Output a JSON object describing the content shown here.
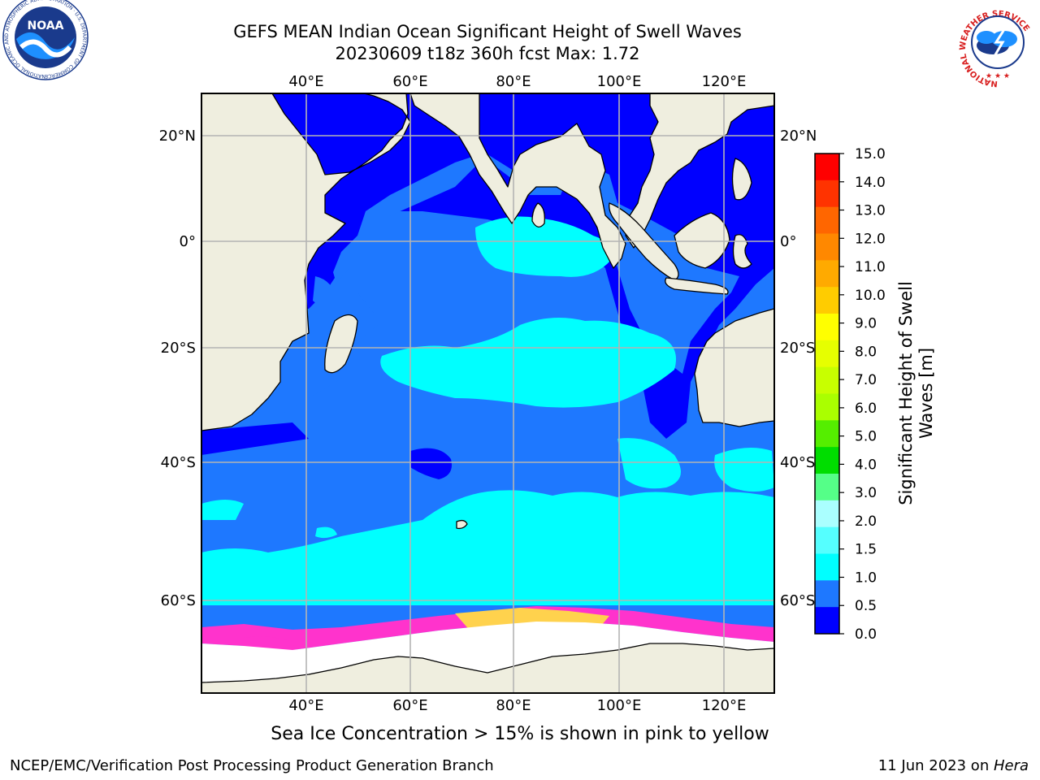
{
  "title": {
    "line1": "GEFS MEAN Indian Ocean Significant Height of Swell Waves",
    "line2": "20230609 t18z 360h fcst   Max: 1.72"
  },
  "map": {
    "lon_labels": [
      "40°E",
      "60°E",
      "80°E",
      "100°E",
      "120°E"
    ],
    "lat_labels": [
      "20°N",
      "0°",
      "20°S",
      "40°S",
      "60°S"
    ],
    "colors": {
      "land": "#efeedf",
      "ice": "#ffffff",
      "ocean_low": "#0000ff",
      "ocean_mid": "#1e78ff",
      "ocean_high": "#00ffff",
      "ice_edge_pink": "#ff33cc",
      "ice_edge_yellow": "#ffd24d",
      "grid": "#b4b4b4"
    }
  },
  "colorbar": {
    "label_line1": "Significant Height of Swell",
    "label_line2": "Waves [m]",
    "ticks": [
      "15.0",
      "14.0",
      "13.0",
      "12.0",
      "11.0",
      "10.0",
      "9.0",
      "8.0",
      "7.0",
      "6.0",
      "5.0",
      "4.0",
      "3.0",
      "2.0",
      "1.5",
      "1.0",
      "0.5",
      "0.0"
    ],
    "colors_top_to_bottom": [
      "#ff0000",
      "#ff3300",
      "#ff6600",
      "#ff8800",
      "#ffaa00",
      "#ffcc00",
      "#ffff00",
      "#e6ff00",
      "#c8ff00",
      "#aaff00",
      "#55ee00",
      "#00dd00",
      "#55ff88",
      "#aaffff",
      "#55ffff",
      "#00ffff",
      "#1e78ff",
      "#0000ff"
    ]
  },
  "footnote": "Sea Ice Concentration > 15% is shown in pink to yellow",
  "footer": {
    "left": "NCEP/EMC/Verification Post Processing Product Generation Branch",
    "right_prefix": "11 Jun 2023 on ",
    "right_host": "Hera"
  },
  "logos": {
    "noaa_text": "NOAA",
    "noaa_ring": "NATIONAL OCEANIC AND ATMOSPHERIC ADMINISTRATION · U.S. DEPARTMENT OF COMMERCE ·",
    "nws_ring": "NATIONAL WEATHER SERVICE"
  }
}
